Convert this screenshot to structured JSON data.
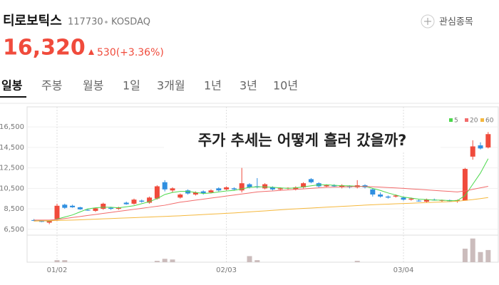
{
  "header": {
    "name": "티로보틱스",
    "code": "117730",
    "market": "KOSDAQ",
    "watchlist": "관심종목",
    "price": "16,320",
    "change": "530(+3.36%)"
  },
  "tabs": [
    "일봉",
    "주봉",
    "월봉",
    "1일",
    "3개월",
    "1년",
    "3년",
    "10년"
  ],
  "chart_data": {
    "type": "candlestick",
    "annotation": "주가 추세는 어떻게 흘러 갔을까?",
    "categories": [
      null,
      null,
      null,
      "01/02",
      null,
      null,
      null,
      null,
      null,
      null,
      null,
      null,
      null,
      null,
      null,
      null,
      null,
      null,
      null,
      null,
      null,
      null,
      null,
      null,
      null,
      "02/03",
      null,
      null,
      null,
      null,
      null,
      null,
      null,
      null,
      null,
      null,
      null,
      null,
      null,
      null,
      null,
      null,
      null,
      null,
      null,
      null,
      null,
      null,
      "03/04",
      null,
      null,
      null,
      null,
      null,
      null,
      null,
      null,
      null,
      null,
      null
    ],
    "open": [
      7400,
      7300,
      7150,
      7500,
      8900,
      8800,
      8650,
      8400,
      8300,
      8500,
      8600,
      8500,
      9100,
      9000,
      9300,
      9100,
      9500,
      11100,
      10300,
      9600,
      10300,
      9900,
      10200,
      10100,
      10500,
      10400,
      10500,
      10300,
      10900,
      10700,
      10500,
      10600,
      10400,
      10500,
      10400,
      10600,
      11400,
      11000,
      10700,
      10800,
      10600,
      10700,
      10600,
      10800,
      10400,
      9900,
      9700,
      9700,
      9600,
      9400,
      9300,
      9200,
      9400,
      9300,
      9350,
      9300,
      9300,
      13600,
      14700,
      14500
    ],
    "high": [
      7500,
      7400,
      7400,
      9000,
      9000,
      8900,
      8700,
      8500,
      8600,
      9100,
      8700,
      8700,
      9200,
      9500,
      9400,
      9700,
      10800,
      11300,
      10600,
      10000,
      10400,
      10200,
      10300,
      10400,
      10600,
      10700,
      10600,
      12500,
      11000,
      11500,
      11000,
      10700,
      10600,
      10600,
      10700,
      11100,
      11500,
      11100,
      10900,
      10900,
      10900,
      10800,
      11300,
      10900,
      10500,
      10100,
      9800,
      9900,
      9700,
      9600,
      9400,
      9500,
      9500,
      9400,
      9400,
      9400,
      12500,
      15200,
      15000,
      16000
    ],
    "low": [
      7300,
      7200,
      7000,
      7400,
      8500,
      8600,
      8400,
      8300,
      8200,
      8400,
      8400,
      8400,
      8900,
      8900,
      9100,
      9000,
      9400,
      10200,
      10100,
      9500,
      9900,
      9800,
      9900,
      10000,
      10200,
      10300,
      10300,
      10100,
      10500,
      10500,
      10400,
      10300,
      10300,
      10400,
      10300,
      10500,
      11000,
      10600,
      10600,
      10600,
      10500,
      10500,
      10500,
      10500,
      9700,
      9600,
      9500,
      9600,
      9300,
      9300,
      9200,
      9100,
      9300,
      9200,
      9200,
      9100,
      9300,
      13300,
      14300,
      14400
    ],
    "close": [
      7350,
      7250,
      7350,
      8800,
      8600,
      8650,
      8450,
      8350,
      8550,
      9000,
      8500,
      8600,
      8950,
      9400,
      9200,
      9600,
      10700,
      10400,
      10500,
      9900,
      10000,
      10100,
      10000,
      10300,
      10300,
      10600,
      10400,
      11000,
      10600,
      10600,
      10900,
      10400,
      10500,
      10550,
      10600,
      11000,
      11100,
      10700,
      10800,
      10700,
      10800,
      10600,
      10800,
      10600,
      9900,
      9700,
      9600,
      9800,
      9400,
      9500,
      9250,
      9400,
      9350,
      9350,
      9250,
      9350,
      12400,
      14600,
      14400,
      15800
    ],
    "up_color": "#f04b3c",
    "down_color": "#2f8fe0",
    "series": [
      {
        "name": "5",
        "color": "#4cd84c",
        "values": [
          7400,
          7350,
          7300,
          7500,
          7700,
          7900,
          8200,
          8500,
          8600,
          8650,
          8650,
          8600,
          8700,
          8800,
          9000,
          9200,
          9500,
          9900,
          10100,
          10200,
          10200,
          10100,
          10000,
          10050,
          10150,
          10250,
          10300,
          10450,
          10600,
          10650,
          10650,
          10600,
          10550,
          10500,
          10550,
          10650,
          10750,
          10850,
          10850,
          10800,
          10750,
          10750,
          10700,
          10700,
          10500,
          10300,
          10050,
          9850,
          9650,
          9550,
          9450,
          9400,
          9350,
          9350,
          9300,
          9300,
          9800,
          10900,
          12000,
          13400
        ]
      },
      {
        "name": "20",
        "color": "#f26b6b",
        "values": [
          7400,
          7400,
          7400,
          7450,
          7550,
          7650,
          7750,
          7850,
          7950,
          8050,
          8150,
          8250,
          8350,
          8450,
          8550,
          8650,
          8750,
          8850,
          9000,
          9150,
          9250,
          9350,
          9450,
          9550,
          9650,
          9750,
          9850,
          9950,
          10050,
          10150,
          10200,
          10250,
          10300,
          10350,
          10400,
          10450,
          10500,
          10550,
          10600,
          10620,
          10640,
          10660,
          10680,
          10680,
          10660,
          10620,
          10580,
          10540,
          10500,
          10450,
          10400,
          10350,
          10300,
          10250,
          10200,
          10150,
          10250,
          10400,
          10550,
          10700
        ]
      },
      {
        "name": "60",
        "color": "#f5b83d",
        "values": [
          7300,
          7320,
          7340,
          7360,
          7380,
          7400,
          7430,
          7460,
          7490,
          7520,
          7550,
          7580,
          7610,
          7640,
          7670,
          7700,
          7730,
          7760,
          7790,
          7820,
          7860,
          7900,
          7940,
          7980,
          8020,
          8060,
          8100,
          8150,
          8200,
          8250,
          8300,
          8350,
          8400,
          8450,
          8500,
          8540,
          8580,
          8620,
          8660,
          8700,
          8740,
          8780,
          8820,
          8860,
          8900,
          8930,
          8960,
          8990,
          9020,
          9050,
          9080,
          9110,
          9140,
          9170,
          9200,
          9250,
          9320,
          9400,
          9500,
          9600
        ]
      }
    ],
    "volume": [
      0,
      0,
      0,
      3,
      3,
      0,
      0,
      0,
      0,
      0,
      0,
      0,
      0,
      0,
      0,
      0,
      2,
      5,
      4,
      0,
      0,
      0,
      0,
      0,
      0,
      0,
      0,
      0,
      9,
      3,
      0,
      0,
      0,
      0,
      0,
      0,
      0,
      0,
      0,
      0,
      0,
      0,
      2,
      0,
      0,
      0,
      0,
      0,
      0,
      0,
      0,
      0,
      0,
      0,
      0,
      0,
      20,
      35,
      15,
      18
    ],
    "volume_color": "#cbbcbc",
    "volume_ylim": [
      0,
      40
    ],
    "ylim": [
      6000,
      17000
    ],
    "yticks": [
      {
        "value": 6500,
        "label": "6,500"
      },
      {
        "value": 8500,
        "label": "8,500"
      },
      {
        "value": 10500,
        "label": "10,500"
      },
      {
        "value": 12500,
        "label": "12,500"
      },
      {
        "value": 14500,
        "label": "14,500"
      },
      {
        "value": 16500,
        "label": "16,500"
      }
    ]
  }
}
